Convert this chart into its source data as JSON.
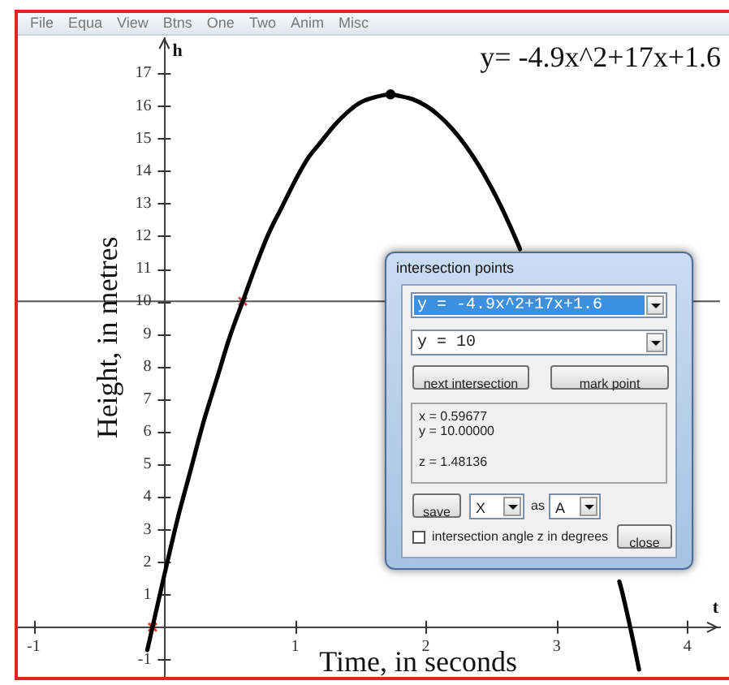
{
  "chart_data": {
    "type": "line",
    "title": "y= -4.9x^2+17x+1.6",
    "xlabel": "Time, in seconds",
    "ylabel": "Height, in metres",
    "annotations": [
      "h",
      "t",
      "File",
      "Equa",
      "View",
      "Btns",
      "One",
      "Two",
      "Anim",
      "Misc",
      "intersection points",
      "y = -4.9x^2+17x+1.6",
      "y = 10",
      "next intersection",
      "mark point",
      "x = 0.59677",
      "y = 10.00000",
      "z = 1.48136",
      "save",
      "X",
      "as",
      "A",
      "intersection angle z in degrees",
      "close"
    ],
    "xlim": [
      -1.12,
      4.25
    ],
    "ylim": [
      -1.5,
      18.1
    ],
    "xticks": [
      -1,
      1,
      2,
      3,
      4
    ],
    "yticks": [
      -1,
      1,
      2,
      3,
      4,
      5,
      6,
      7,
      8,
      9,
      10,
      11,
      12,
      13,
      14,
      15,
      16,
      17
    ],
    "series": [
      {
        "type": "line",
        "color": "#000000",
        "marker": "none",
        "x": [
          -0.13,
          0,
          0.1,
          0.2,
          0.3,
          0.4,
          0.5,
          0.6,
          0.7,
          0.8,
          0.9,
          1,
          1.1,
          1.2,
          1.3,
          1.4,
          1.5,
          1.6,
          1.73,
          1.8,
          1.9,
          2,
          2.1,
          2.2,
          2.3,
          2.4,
          2.5,
          2.6,
          2.7,
          2.72,
          3.1,
          3.48,
          3.5,
          3.6,
          3.63
        ],
        "values": [
          -0.7,
          1.6,
          3.3,
          4.8,
          6.3,
          7.6,
          8.9,
          10,
          11.1,
          12.1,
          12.9,
          13.7,
          14.4,
          14.9,
          15.4,
          15.8,
          16.1,
          16.25,
          16.35,
          16.3,
          16.2,
          16,
          15.7,
          15.3,
          14.8,
          14.2,
          13.5,
          12.7,
          11.8,
          11.6,
          null,
          1.4,
          1.1,
          -0.7,
          -1.3
        ]
      },
      {
        "type": "scatter",
        "color": "#000000",
        "marker": "circle",
        "x": [
          1.73
        ],
        "values": [
          16.35
        ]
      },
      {
        "type": "scatter",
        "color": "#e03c3c",
        "marker": "cross",
        "x": [
          -0.09,
          0.6
        ],
        "values": [
          0,
          10
        ]
      }
    ],
    "ref_lines": [
      {
        "axis": "y",
        "value": 10,
        "color": "#555555"
      }
    ]
  }
}
